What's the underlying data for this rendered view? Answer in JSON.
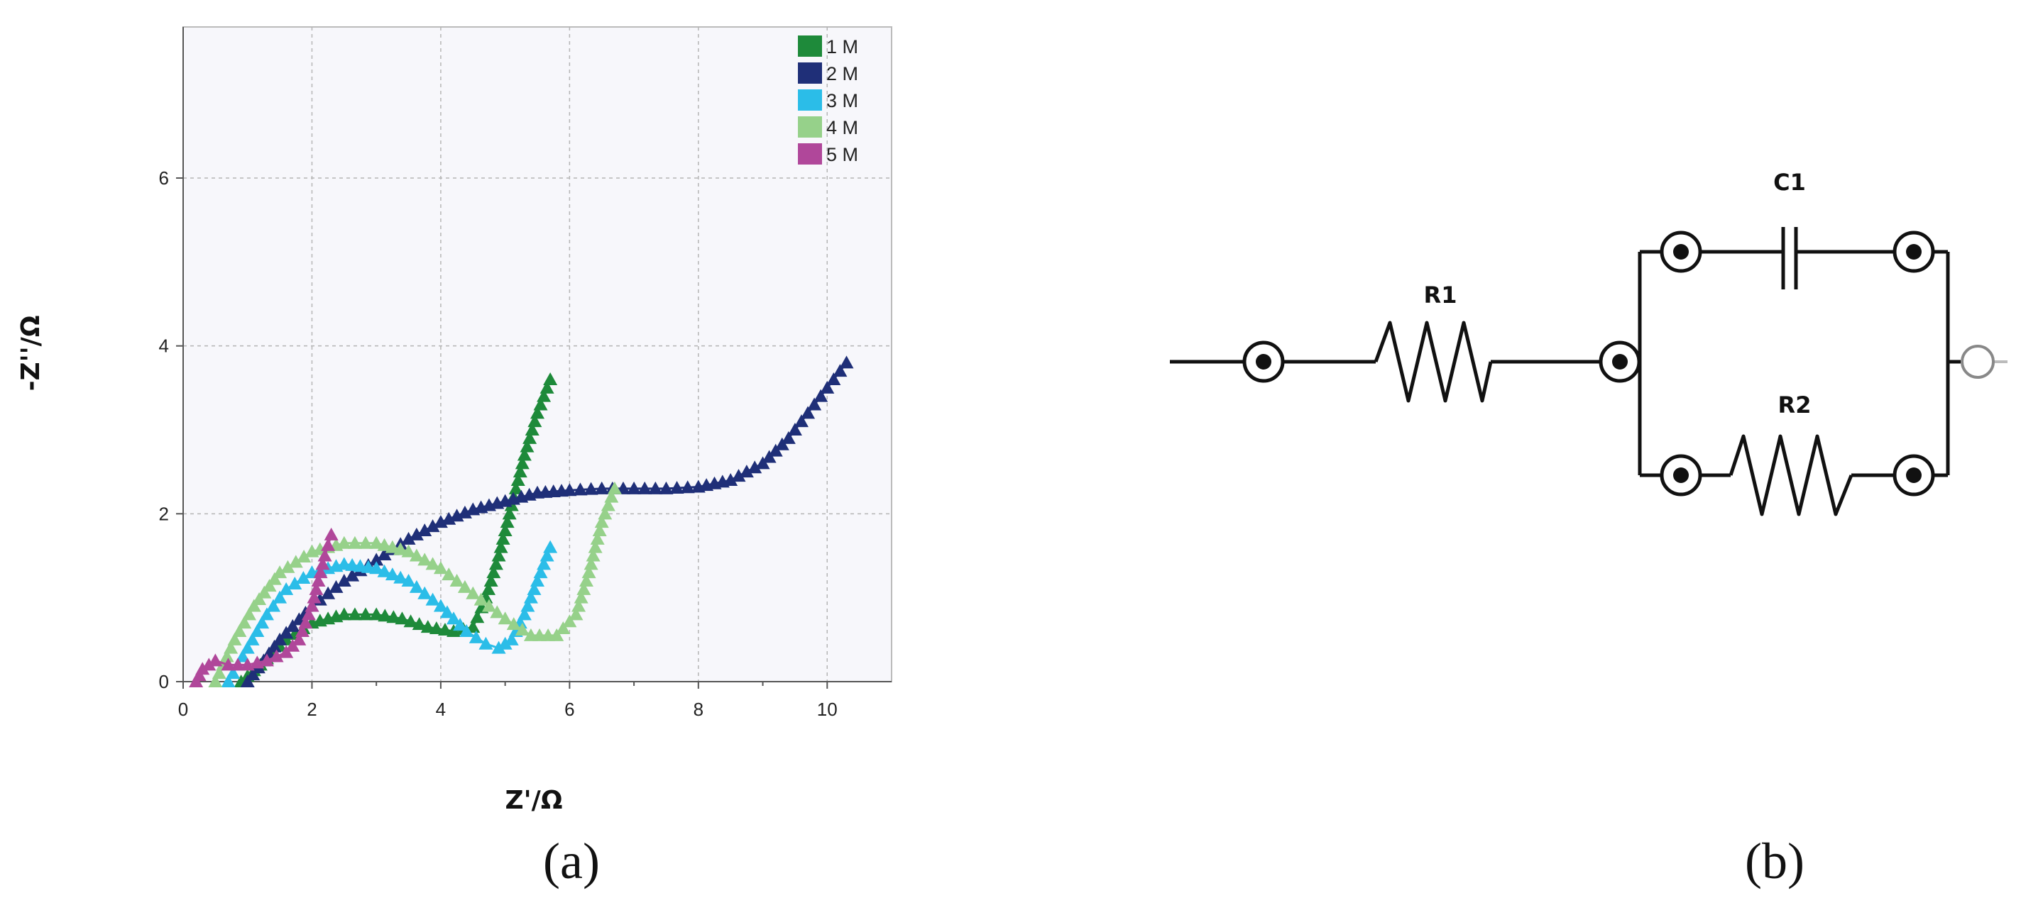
{
  "panel_labels": {
    "a": "(a)",
    "b": "(b)"
  },
  "chart_data": {
    "type": "scatter",
    "xlabel": "Z'/Ω",
    "ylabel": "-Z''/Ω",
    "xlim": [
      0,
      11
    ],
    "ylim": [
      0,
      7.8
    ],
    "xticks": [
      0,
      2,
      4,
      6,
      8,
      10
    ],
    "yticks": [
      0,
      2,
      4,
      6
    ],
    "grid": true,
    "legend_position": "top-right",
    "marker": "triangle",
    "series": [
      {
        "name": "1 M",
        "color": "#1e8a3a",
        "x": [
          0.9,
          1.2,
          1.6,
          2.0,
          2.5,
          3.0,
          3.4,
          3.8,
          4.2,
          4.5,
          4.7,
          4.9,
          5.1,
          5.3,
          5.5,
          5.7
        ],
        "y": [
          0.0,
          0.2,
          0.5,
          0.7,
          0.8,
          0.8,
          0.75,
          0.65,
          0.6,
          0.65,
          1.0,
          1.5,
          2.1,
          2.7,
          3.2,
          3.6
        ]
      },
      {
        "name": "2 M",
        "color": "#1f2f78",
        "x": [
          1.0,
          1.5,
          2.0,
          2.5,
          3.0,
          3.5,
          4.0,
          4.5,
          5.0,
          5.5,
          6.0,
          6.5,
          7.0,
          7.5,
          8.0,
          8.5,
          9.0,
          9.4,
          9.7,
          10.0,
          10.3
        ],
        "y": [
          0.0,
          0.5,
          0.9,
          1.2,
          1.45,
          1.7,
          1.9,
          2.05,
          2.15,
          2.25,
          2.28,
          2.3,
          2.3,
          2.3,
          2.32,
          2.4,
          2.6,
          2.9,
          3.2,
          3.5,
          3.8
        ]
      },
      {
        "name": "3 M",
        "color": "#2bbde8",
        "x": [
          0.7,
          1.0,
          1.3,
          1.6,
          2.0,
          2.5,
          3.0,
          3.5,
          4.0,
          4.4,
          4.7,
          4.9,
          5.1,
          5.3,
          5.5,
          5.7
        ],
        "y": [
          0.0,
          0.4,
          0.8,
          1.1,
          1.3,
          1.4,
          1.35,
          1.2,
          0.9,
          0.6,
          0.45,
          0.4,
          0.5,
          0.8,
          1.2,
          1.6
        ]
      },
      {
        "name": "4 M",
        "color": "#96d18a",
        "x": [
          0.5,
          0.8,
          1.1,
          1.5,
          2.0,
          2.5,
          3.0,
          3.5,
          4.0,
          4.5,
          5.0,
          5.4,
          5.8,
          6.1,
          6.3,
          6.5,
          6.7
        ],
        "y": [
          0.0,
          0.5,
          0.9,
          1.3,
          1.55,
          1.65,
          1.65,
          1.55,
          1.35,
          1.05,
          0.75,
          0.55,
          0.55,
          0.8,
          1.3,
          1.9,
          2.3
        ]
      },
      {
        "name": "5 M",
        "color": "#b0479a",
        "x": [
          0.2,
          0.3,
          0.5,
          0.7,
          1.0,
          1.3,
          1.6,
          1.8,
          1.9,
          2.0,
          2.1,
          2.2,
          2.3
        ],
        "y": [
          0.0,
          0.15,
          0.25,
          0.2,
          0.2,
          0.25,
          0.35,
          0.5,
          0.7,
          0.9,
          1.2,
          1.5,
          1.75
        ]
      }
    ]
  },
  "circuit": {
    "components": {
      "r1": "R1",
      "r2": "R2",
      "c1": "C1"
    }
  }
}
